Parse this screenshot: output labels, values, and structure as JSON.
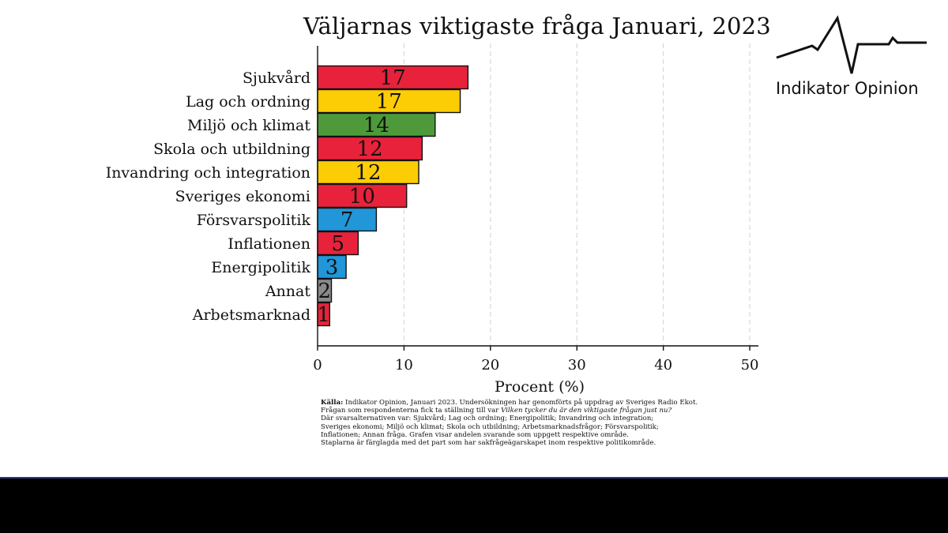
{
  "chart_data": {
    "type": "bar",
    "orientation": "horizontal",
    "title": "Väljarnas viktigaste fråga Januari, 2023",
    "xlabel": "Procent (%)",
    "ylabel": "",
    "xlim": [
      0,
      51
    ],
    "xticks": [
      0,
      10,
      20,
      30,
      40,
      50
    ],
    "grid": "dashed vertical",
    "categories": [
      "Sjukvård",
      "Lag och ordning",
      "Miljö och klimat",
      "Skola och utbildning",
      "Invandring och integration",
      "Sveriges ekonomi",
      "Försvarspolitik",
      "Inflationen",
      "Energipolitik",
      "Annat",
      "Arbetsmarknad"
    ],
    "values": [
      17.4,
      16.5,
      13.6,
      12.1,
      11.7,
      10.3,
      6.8,
      4.7,
      3.3,
      1.6,
      1.4
    ],
    "data_labels": [
      "17",
      "17",
      "14",
      "12",
      "12",
      "10",
      "7",
      "5",
      "3",
      "2",
      "1"
    ],
    "bar_colors": [
      "#e8223a",
      "#fccd05",
      "#4e9a3a",
      "#e8223a",
      "#fccd05",
      "#e8223a",
      "#2196d8",
      "#e8223a",
      "#2196d8",
      "#8a8a8a",
      "#e8223a"
    ]
  },
  "logo": {
    "text": "Indikator Opinion"
  },
  "footnote": {
    "source_label": "Källa:",
    "source_text": "Indikator Opinion, Januari 2023. Undersökningen har genomförts på uppdrag av Sveriges Radio Ekot.",
    "question_prefix": "Frågan som respondenterna fick ta ställning till var",
    "question": "Vilken tycker du är den viktigaste frågan just nu?",
    "alternatives_1": "Där svarsalternativen var: Sjukvård; Lag och ordning; Energipolitik; Invandring och integration;",
    "alternatives_2": "Sveriges ekonomi; Miljö och klimat; Skola och utbildning; Arbetsmarknadsfrågor; Försvarspolitik;",
    "alternatives_3": "Inflationen; Annan fråga. Grafen visar andelen svarande som uppgett respektive område.",
    "note": "Staplarna är färglagda med det part som har sakfrågeägarskapet inom respektive politikområde."
  }
}
